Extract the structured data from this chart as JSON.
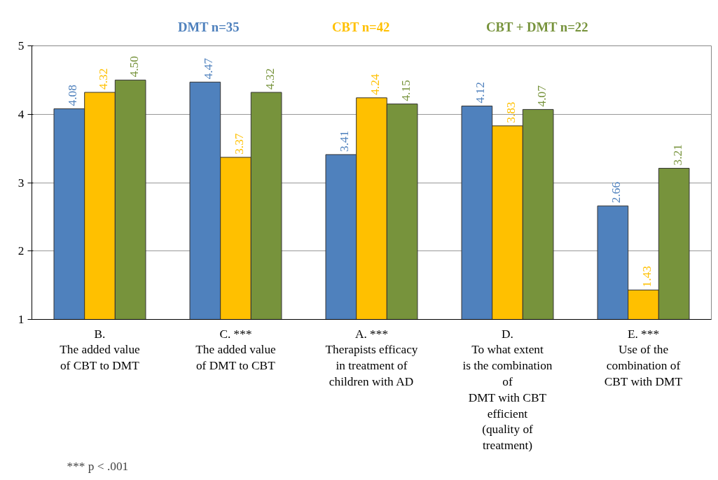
{
  "chart_data": {
    "type": "bar",
    "categories": [
      "B.\nThe added value\nof CBT to DMT",
      "C. ***\nThe added value\nof DMT to CBT",
      "A. ***\nTherapists efficacy\nin treatment of\nchildren with AD",
      "D.\nTo what extent\nis the combination\nof\nDMT with CBT\nefficient\n(quality of\ntreatment)",
      "E. ***\nUse of the\ncombination of\nCBT with DMT"
    ],
    "series": [
      {
        "name": "DMT n=35",
        "color": "#4f81bd",
        "values": [
          4.08,
          4.47,
          3.41,
          4.12,
          2.66
        ]
      },
      {
        "name": "CBT n=42",
        "color": "#ffc000",
        "values": [
          4.32,
          3.37,
          4.24,
          3.83,
          1.43
        ]
      },
      {
        "name": "CBT + DMT n=22",
        "color": "#77933c",
        "values": [
          4.5,
          4.32,
          4.15,
          4.07,
          3.21
        ]
      }
    ],
    "value_labels": [
      [
        "4.08",
        "4.47",
        "3.41",
        "4.12",
        "2.66"
      ],
      [
        "4.32",
        "3.37",
        "4.24",
        "3.83",
        "1.43"
      ],
      [
        "4.50",
        "4.32",
        "4.15",
        "4.07",
        "3.21"
      ]
    ],
    "ylim": [
      1,
      5
    ],
    "yticks": [
      1,
      2,
      3,
      4,
      5
    ],
    "grid": "y",
    "legend": "top",
    "annotations": [
      "*** p < .001"
    ]
  }
}
